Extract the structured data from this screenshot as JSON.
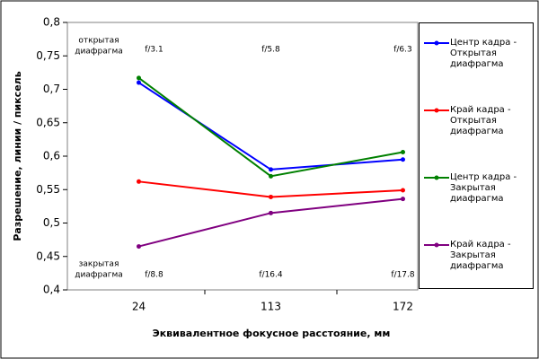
{
  "chart_data": {
    "type": "line",
    "x_label": "Эквивалентное фокусное расстояние, мм",
    "y_label": "Разрешение, линии / пиксель",
    "categories": [
      "24",
      "113",
      "172"
    ],
    "series": [
      {
        "name": "Центр кадра - Открытая диафрагма",
        "color": "#0000ff",
        "values": [
          0.71,
          0.58,
          0.595
        ]
      },
      {
        "name": "Край кадра - Открытая диафрагма",
        "color": "#ff0000",
        "values": [
          0.562,
          0.539,
          0.549
        ]
      },
      {
        "name": "Центр кадра - Закрытая диафрагма",
        "color": "#008000",
        "values": [
          0.717,
          0.57,
          0.606
        ]
      },
      {
        "name": "Край кадра - Закрытая диафрагма",
        "color": "#800080",
        "values": [
          0.465,
          0.515,
          0.536
        ]
      }
    ],
    "ylim": [
      0.4,
      0.8
    ],
    "yticks": [
      {
        "value": 0.4,
        "label": "0,4"
      },
      {
        "value": 0.45,
        "label": "0,45"
      },
      {
        "value": 0.5,
        "label": "0,5"
      },
      {
        "value": 0.55,
        "label": "0,55"
      },
      {
        "value": 0.6,
        "label": "0,6"
      },
      {
        "value": 0.65,
        "label": "0,65"
      },
      {
        "value": 0.7,
        "label": "0,7"
      },
      {
        "value": 0.75,
        "label": "0,75"
      },
      {
        "value": 0.8,
        "label": "0,8"
      }
    ],
    "grid": false,
    "annotations": {
      "open": {
        "lines": [
          "открытая",
          "диафрагма"
        ],
        "apertures": [
          "f/3.1",
          "f/5.8",
          "f/6.3"
        ]
      },
      "closed": {
        "lines": [
          "закрытая",
          "диафрагма"
        ],
        "apertures": [
          "f/8.8",
          "f/16.4",
          "f/17.8"
        ]
      }
    }
  }
}
